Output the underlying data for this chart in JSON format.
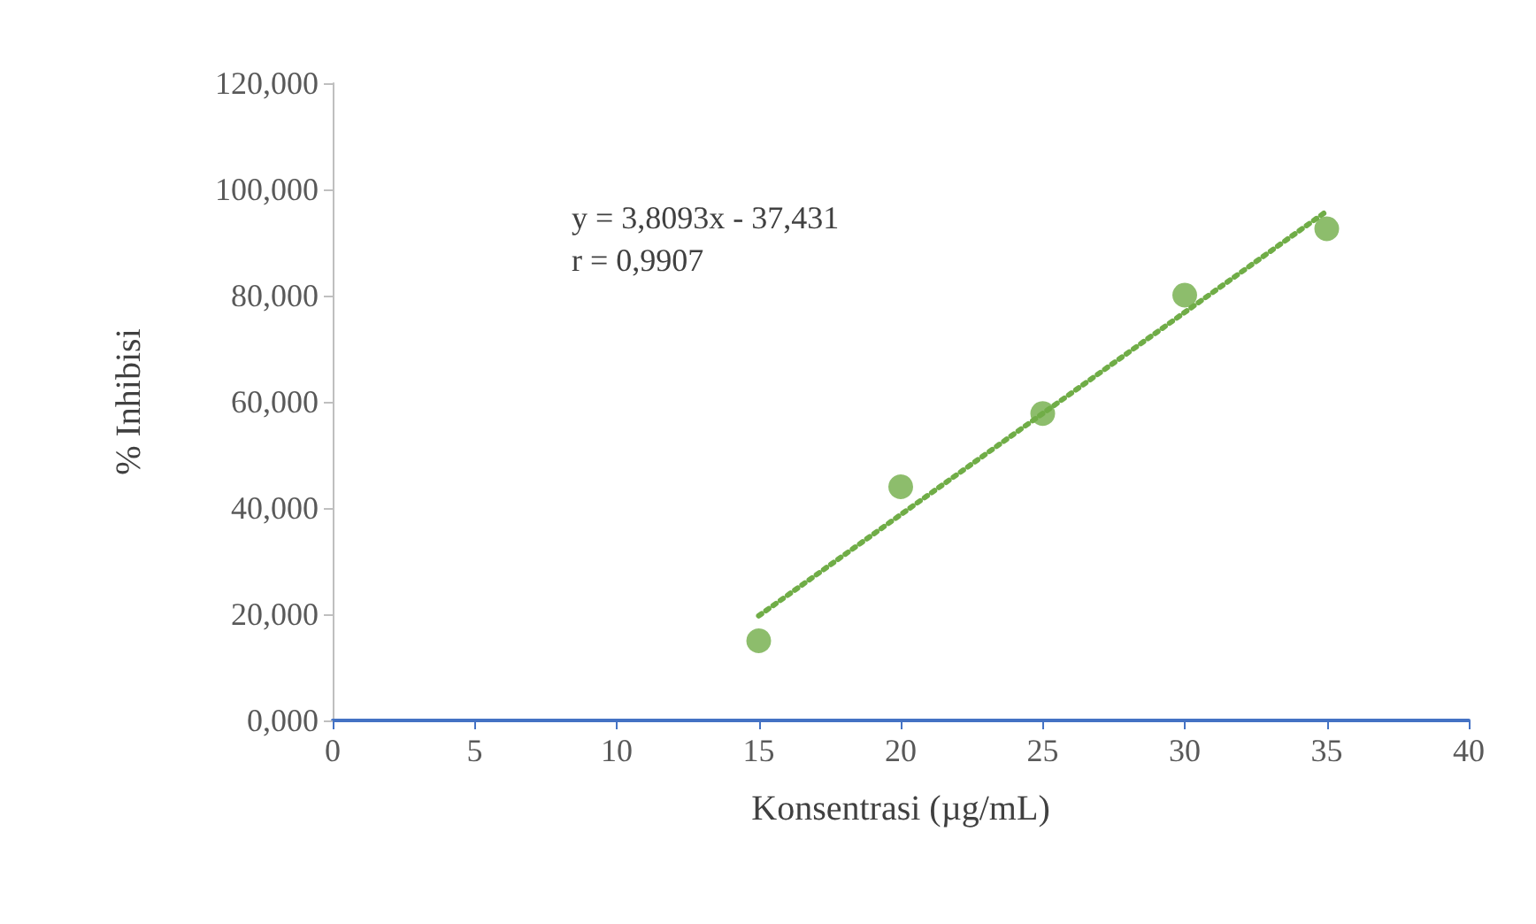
{
  "chart_data": {
    "type": "scatter",
    "xlabel": "Konsentrasi (µg/mL)",
    "ylabel": "% Inhibisi",
    "annotations": [
      "y = 3,8093x - 37,431",
      "r = 0,9907"
    ],
    "xlim": [
      0,
      40
    ],
    "xticks": [
      0,
      5,
      10,
      15,
      20,
      25,
      30,
      35,
      40
    ],
    "ylim": [
      0,
      120
    ],
    "yticks": [
      {
        "value": 0,
        "label": "0,000"
      },
      {
        "value": 20,
        "label": "20,000"
      },
      {
        "value": 40,
        "label": "40,000"
      },
      {
        "value": 60,
        "label": "60,000"
      },
      {
        "value": 80,
        "label": "80,000"
      },
      {
        "value": 100,
        "label": "100,000"
      },
      {
        "value": 120,
        "label": "120,000"
      }
    ],
    "series": [
      {
        "color": "#70ad47",
        "marker": "circle",
        "x": [
          15,
          20,
          25,
          30,
          35
        ],
        "values": [
          15.0,
          44.0,
          57.8,
          80.1,
          92.6
        ]
      },
      {
        "type": "line",
        "color": "#70ad47",
        "line_style": "dotted",
        "x": [
          15,
          35
        ],
        "values": [
          19.7,
          95.9
        ]
      }
    ]
  }
}
